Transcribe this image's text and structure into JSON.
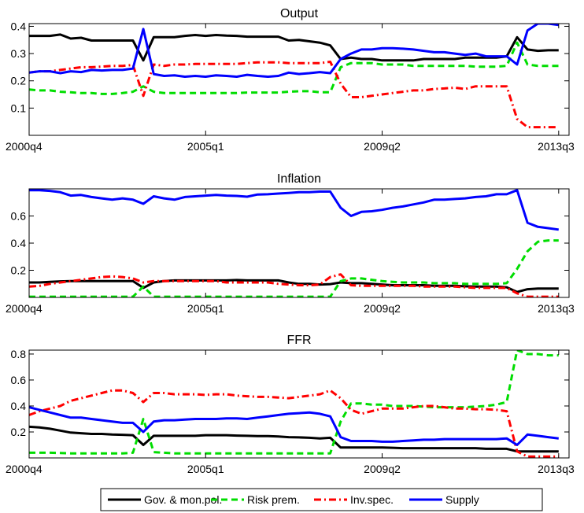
{
  "figure": {
    "legend_placement": "bottom-center",
    "legend_items": [
      {
        "label": "Gov. & mon.pol.",
        "color": "#000000",
        "dash": "solid"
      },
      {
        "label": "Risk prem.",
        "color": "#00dd00",
        "dash": "dashed"
      },
      {
        "label": "Inv.spec.",
        "color": "#ff0000",
        "dash": "dash-dot"
      },
      {
        "label": "Supply",
        "color": "#0000ff",
        "dash": "solid"
      }
    ]
  },
  "chart_data": [
    {
      "type": "line",
      "title": "Output",
      "xticks": [
        "2000q4",
        "2005q1",
        "2009q2",
        "2013q3"
      ],
      "xtick_index": [
        0,
        17,
        34,
        51
      ],
      "xlim": [
        0,
        52
      ],
      "ylim": [
        0,
        0.41
      ],
      "yticks": [
        0.1,
        0.2,
        0.3,
        0.4
      ],
      "ytick_labels": [
        "0.1",
        "0.2",
        "0.3",
        "0.4"
      ],
      "grid": false,
      "series": [
        {
          "name": "Gov. & mon.pol.",
          "color": "#000000",
          "dash": "solid",
          "values": [
            0.365,
            0.365,
            0.365,
            0.37,
            0.355,
            0.358,
            0.348,
            0.348,
            0.348,
            0.348,
            0.348,
            0.275,
            0.36,
            0.36,
            0.36,
            0.365,
            0.368,
            0.365,
            0.368,
            0.366,
            0.365,
            0.362,
            0.362,
            0.362,
            0.362,
            0.348,
            0.35,
            0.345,
            0.34,
            0.33,
            0.28,
            0.285,
            0.28,
            0.28,
            0.275,
            0.275,
            0.275,
            0.275,
            0.28,
            0.28,
            0.28,
            0.28,
            0.285,
            0.285,
            0.285,
            0.285,
            0.29,
            0.36,
            0.315,
            0.31,
            0.312,
            0.312
          ]
        },
        {
          "name": "Risk prem.",
          "color": "#00dd00",
          "dash": "dashed",
          "values": [
            0.168,
            0.165,
            0.165,
            0.16,
            0.158,
            0.155,
            0.155,
            0.152,
            0.152,
            0.155,
            0.16,
            0.18,
            0.16,
            0.155,
            0.155,
            0.155,
            0.155,
            0.155,
            0.155,
            0.155,
            0.155,
            0.157,
            0.157,
            0.157,
            0.157,
            0.16,
            0.162,
            0.162,
            0.158,
            0.158,
            0.25,
            0.265,
            0.265,
            0.265,
            0.26,
            0.26,
            0.26,
            0.255,
            0.255,
            0.255,
            0.255,
            0.255,
            0.255,
            0.252,
            0.252,
            0.252,
            0.255,
            0.34,
            0.26,
            0.255,
            0.255,
            0.255
          ]
        },
        {
          "name": "Inv.spec.",
          "color": "#ff0000",
          "dash": "dash-dot",
          "values": [
            0.23,
            0.235,
            0.235,
            0.24,
            0.245,
            0.25,
            0.25,
            0.252,
            0.255,
            0.255,
            0.258,
            0.145,
            0.26,
            0.255,
            0.26,
            0.26,
            0.262,
            0.262,
            0.262,
            0.262,
            0.262,
            0.265,
            0.268,
            0.268,
            0.268,
            0.265,
            0.265,
            0.265,
            0.265,
            0.27,
            0.19,
            0.14,
            0.14,
            0.145,
            0.15,
            0.155,
            0.16,
            0.165,
            0.165,
            0.17,
            0.172,
            0.175,
            0.17,
            0.18,
            0.18,
            0.18,
            0.18,
            0.06,
            0.03,
            0.03,
            0.03,
            0.03
          ]
        },
        {
          "name": "Supply",
          "color": "#0000ff",
          "dash": "solid",
          "values": [
            0.23,
            0.235,
            0.235,
            0.228,
            0.235,
            0.232,
            0.24,
            0.238,
            0.24,
            0.24,
            0.245,
            0.39,
            0.225,
            0.218,
            0.22,
            0.215,
            0.218,
            0.215,
            0.22,
            0.218,
            0.215,
            0.222,
            0.218,
            0.215,
            0.218,
            0.23,
            0.225,
            0.228,
            0.232,
            0.228,
            0.28,
            0.3,
            0.315,
            0.315,
            0.32,
            0.32,
            0.318,
            0.315,
            0.31,
            0.305,
            0.305,
            0.3,
            0.295,
            0.3,
            0.29,
            0.29,
            0.29,
            0.26,
            0.385,
            0.41,
            0.41,
            0.405
          ]
        }
      ]
    },
    {
      "type": "line",
      "title": "Inflation",
      "xticks": [
        "2000q4",
        "2005q1",
        "2009q2",
        "2013q3"
      ],
      "xtick_index": [
        0,
        17,
        34,
        51
      ],
      "xlim": [
        0,
        52
      ],
      "ylim": [
        0,
        0.8
      ],
      "yticks": [
        0.2,
        0.4,
        0.6
      ],
      "ytick_labels": [
        "0.2",
        "0.4",
        "0.6"
      ],
      "grid": false,
      "series": [
        {
          "name": "Gov. & mon.pol.",
          "color": "#000000",
          "dash": "solid",
          "values": [
            0.11,
            0.11,
            0.115,
            0.118,
            0.12,
            0.12,
            0.12,
            0.12,
            0.12,
            0.12,
            0.12,
            0.07,
            0.11,
            0.12,
            0.125,
            0.125,
            0.125,
            0.125,
            0.125,
            0.125,
            0.128,
            0.125,
            0.125,
            0.125,
            0.125,
            0.11,
            0.1,
            0.1,
            0.095,
            0.098,
            0.11,
            0.105,
            0.105,
            0.1,
            0.095,
            0.09,
            0.09,
            0.09,
            0.09,
            0.085,
            0.085,
            0.085,
            0.082,
            0.08,
            0.08,
            0.08,
            0.075,
            0.04,
            0.06,
            0.065,
            0.065,
            0.065
          ]
        },
        {
          "name": "Risk prem.",
          "color": "#00dd00",
          "dash": "dashed",
          "values": [
            0.005,
            0.005,
            0.005,
            0.005,
            0.005,
            0.005,
            0.005,
            0.005,
            0.005,
            0.005,
            0.005,
            0.08,
            0.005,
            0.005,
            0.005,
            0.005,
            0.005,
            0.005,
            0.005,
            0.005,
            0.005,
            0.005,
            0.005,
            0.005,
            0.005,
            0.005,
            0.005,
            0.005,
            0.005,
            0.005,
            0.12,
            0.14,
            0.14,
            0.13,
            0.12,
            0.115,
            0.11,
            0.11,
            0.11,
            0.105,
            0.105,
            0.105,
            0.1,
            0.1,
            0.1,
            0.1,
            0.105,
            0.21,
            0.34,
            0.41,
            0.42,
            0.42
          ]
        },
        {
          "name": "Inv.spec.",
          "color": "#ff0000",
          "dash": "dash-dot",
          "values": [
            0.08,
            0.085,
            0.1,
            0.11,
            0.12,
            0.13,
            0.14,
            0.15,
            0.155,
            0.15,
            0.14,
            0.11,
            0.12,
            0.12,
            0.12,
            0.12,
            0.12,
            0.12,
            0.12,
            0.11,
            0.11,
            0.11,
            0.11,
            0.11,
            0.1,
            0.095,
            0.09,
            0.09,
            0.095,
            0.15,
            0.17,
            0.09,
            0.085,
            0.085,
            0.085,
            0.085,
            0.085,
            0.085,
            0.08,
            0.08,
            0.08,
            0.08,
            0.075,
            0.07,
            0.07,
            0.07,
            0.07,
            0.03,
            0.005,
            0.005,
            0.005,
            0.005
          ]
        },
        {
          "name": "Supply",
          "color": "#0000ff",
          "dash": "solid",
          "values": [
            0.79,
            0.79,
            0.785,
            0.775,
            0.75,
            0.755,
            0.74,
            0.73,
            0.72,
            0.73,
            0.72,
            0.69,
            0.745,
            0.73,
            0.72,
            0.74,
            0.745,
            0.75,
            0.755,
            0.75,
            0.748,
            0.742,
            0.758,
            0.76,
            0.765,
            0.77,
            0.775,
            0.775,
            0.78,
            0.78,
            0.66,
            0.6,
            0.63,
            0.635,
            0.645,
            0.66,
            0.67,
            0.685,
            0.7,
            0.72,
            0.72,
            0.725,
            0.73,
            0.74,
            0.745,
            0.76,
            0.76,
            0.79,
            0.55,
            0.52,
            0.51,
            0.5
          ]
        }
      ]
    },
    {
      "type": "line",
      "title": "FFR",
      "xticks": [
        "2000q4",
        "2005q1",
        "2009q2",
        "2013q3"
      ],
      "xtick_index": [
        0,
        17,
        34,
        51
      ],
      "xlim": [
        0,
        52
      ],
      "ylim": [
        0,
        0.83
      ],
      "yticks": [
        0.2,
        0.4,
        0.6,
        0.8
      ],
      "ytick_labels": [
        "0.2",
        "0.4",
        "0.6",
        "0.8"
      ],
      "grid": false,
      "series": [
        {
          "name": "Gov. & mon.pol.",
          "color": "#000000",
          "dash": "solid",
          "values": [
            0.24,
            0.235,
            0.225,
            0.21,
            0.195,
            0.19,
            0.185,
            0.185,
            0.18,
            0.178,
            0.175,
            0.1,
            0.17,
            0.17,
            0.17,
            0.17,
            0.17,
            0.175,
            0.175,
            0.175,
            0.172,
            0.17,
            0.168,
            0.168,
            0.165,
            0.16,
            0.158,
            0.155,
            0.15,
            0.155,
            0.08,
            0.08,
            0.08,
            0.08,
            0.08,
            0.078,
            0.075,
            0.075,
            0.075,
            0.075,
            0.075,
            0.075,
            0.075,
            0.075,
            0.07,
            0.07,
            0.07,
            0.05,
            0.05,
            0.05,
            0.05,
            0.05
          ]
        },
        {
          "name": "Risk prem.",
          "color": "#00dd00",
          "dash": "dashed",
          "values": [
            0.04,
            0.04,
            0.04,
            0.038,
            0.035,
            0.035,
            0.035,
            0.035,
            0.035,
            0.035,
            0.04,
            0.3,
            0.045,
            0.04,
            0.035,
            0.035,
            0.035,
            0.035,
            0.035,
            0.035,
            0.035,
            0.035,
            0.035,
            0.035,
            0.035,
            0.035,
            0.035,
            0.035,
            0.035,
            0.035,
            0.28,
            0.42,
            0.42,
            0.41,
            0.41,
            0.4,
            0.4,
            0.4,
            0.395,
            0.39,
            0.39,
            0.39,
            0.39,
            0.395,
            0.4,
            0.41,
            0.43,
            0.83,
            0.8,
            0.8,
            0.79,
            0.79
          ]
        },
        {
          "name": "Inv.spec.",
          "color": "#ff0000",
          "dash": "dash-dot",
          "values": [
            0.33,
            0.36,
            0.38,
            0.4,
            0.44,
            0.46,
            0.48,
            0.5,
            0.52,
            0.52,
            0.5,
            0.43,
            0.5,
            0.5,
            0.49,
            0.49,
            0.49,
            0.485,
            0.49,
            0.49,
            0.48,
            0.475,
            0.47,
            0.47,
            0.465,
            0.46,
            0.47,
            0.48,
            0.49,
            0.52,
            0.46,
            0.37,
            0.34,
            0.36,
            0.38,
            0.38,
            0.38,
            0.39,
            0.4,
            0.4,
            0.39,
            0.38,
            0.38,
            0.375,
            0.375,
            0.37,
            0.36,
            0.05,
            0.01,
            0.01,
            0.01,
            0.01
          ]
        },
        {
          "name": "Supply",
          "color": "#0000ff",
          "dash": "solid",
          "values": [
            0.39,
            0.37,
            0.35,
            0.33,
            0.31,
            0.31,
            0.3,
            0.29,
            0.28,
            0.27,
            0.27,
            0.2,
            0.28,
            0.29,
            0.29,
            0.295,
            0.3,
            0.3,
            0.3,
            0.305,
            0.305,
            0.3,
            0.31,
            0.32,
            0.33,
            0.34,
            0.345,
            0.35,
            0.34,
            0.32,
            0.16,
            0.13,
            0.13,
            0.13,
            0.125,
            0.125,
            0.13,
            0.135,
            0.14,
            0.14,
            0.145,
            0.145,
            0.145,
            0.145,
            0.145,
            0.145,
            0.15,
            0.1,
            0.18,
            0.17,
            0.16,
            0.15
          ]
        }
      ]
    }
  ]
}
